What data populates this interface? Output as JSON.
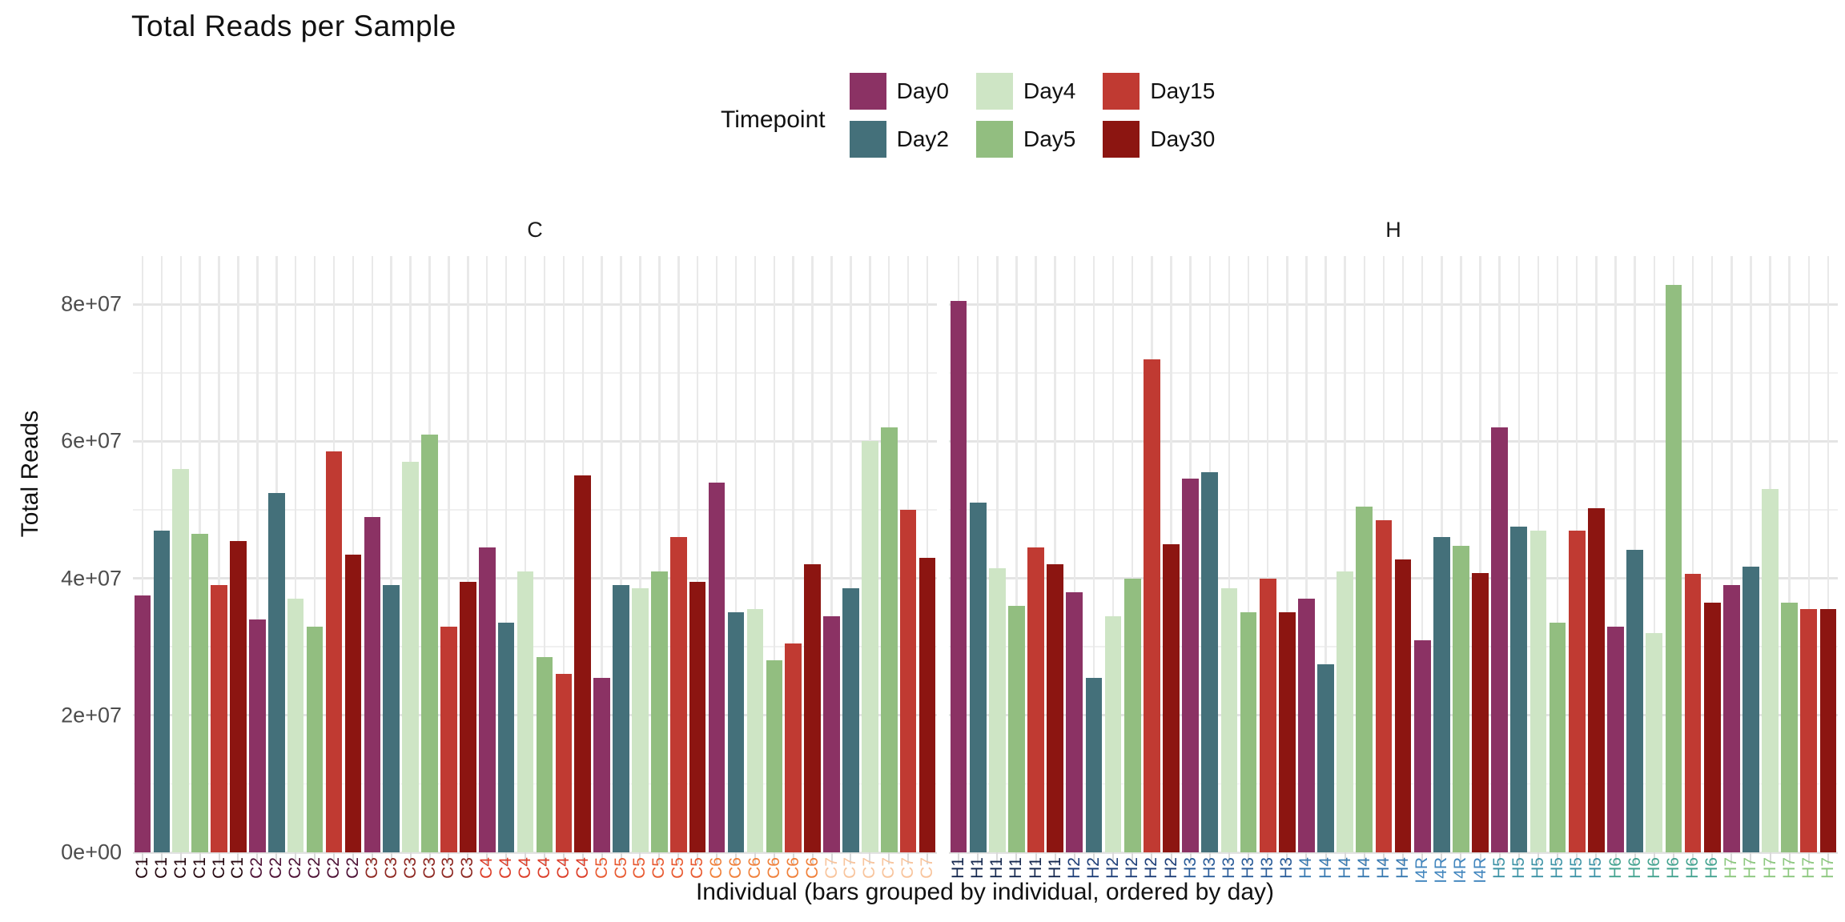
{
  "title": "Total Reads per Sample",
  "legend": {
    "title": "Timepoint",
    "items": [
      {
        "label": "Day0",
        "color": "#8B3264"
      },
      {
        "label": "Day2",
        "color": "#44707A"
      },
      {
        "label": "Day4",
        "color": "#CEE5C5"
      },
      {
        "label": "Day5",
        "color": "#92BE80"
      },
      {
        "label": "Day15",
        "color": "#C03A32"
      },
      {
        "label": "Day30",
        "color": "#8C1511"
      }
    ]
  },
  "axes": {
    "y_title": "Total Reads",
    "x_title": "Individual (bars grouped by individual, ordered by day)",
    "y_ticks": [
      {
        "label": "0e+00",
        "value": 0
      },
      {
        "label": "2e+07",
        "value": 20000000
      },
      {
        "label": "4e+07",
        "value": 40000000
      },
      {
        "label": "6e+07",
        "value": 60000000
      },
      {
        "label": "8e+07",
        "value": 80000000
      }
    ]
  },
  "chart_data": {
    "type": "bar",
    "ylabel": "Total Reads",
    "xlabel": "Individual (bars grouped by individual, ordered by day)",
    "ylim": [
      0,
      87000000
    ],
    "grid": true,
    "legend_position": "top",
    "timepoint_order": [
      "Day0",
      "Day2",
      "Day4",
      "Day5",
      "Day15",
      "Day30"
    ],
    "facets": [
      {
        "label": "C",
        "groups": [
          {
            "individual": "C1",
            "label_color": "#250810",
            "bars": [
              {
                "timepoint": "Day0",
                "value": 37500000
              },
              {
                "timepoint": "Day2",
                "value": 47000000
              },
              {
                "timepoint": "Day4",
                "value": 56000000
              },
              {
                "timepoint": "Day5",
                "value": 46500000
              },
              {
                "timepoint": "Day15",
                "value": 39000000
              },
              {
                "timepoint": "Day30",
                "value": 45500000
              }
            ]
          },
          {
            "individual": "C2",
            "label_color": "#4C1034",
            "bars": [
              {
                "timepoint": "Day0",
                "value": 34000000
              },
              {
                "timepoint": "Day2",
                "value": 52500000
              },
              {
                "timepoint": "Day4",
                "value": 37000000
              },
              {
                "timepoint": "Day5",
                "value": 33000000
              },
              {
                "timepoint": "Day15",
                "value": 58500000
              },
              {
                "timepoint": "Day30",
                "value": 43500000
              }
            ]
          },
          {
            "individual": "C3",
            "label_color": "#8E2822",
            "bars": [
              {
                "timepoint": "Day0",
                "value": 49000000
              },
              {
                "timepoint": "Day2",
                "value": 39000000
              },
              {
                "timepoint": "Day4",
                "value": 57000000
              },
              {
                "timepoint": "Day5",
                "value": 61000000
              },
              {
                "timepoint": "Day15",
                "value": 33000000
              },
              {
                "timepoint": "Day30",
                "value": 39500000
              }
            ]
          },
          {
            "individual": "C4",
            "label_color": "#DC3D28",
            "bars": [
              {
                "timepoint": "Day0",
                "value": 44500000
              },
              {
                "timepoint": "Day2",
                "value": 33500000
              },
              {
                "timepoint": "Day4",
                "value": 41000000
              },
              {
                "timepoint": "Day5",
                "value": 28500000
              },
              {
                "timepoint": "Day15",
                "value": 26000000
              },
              {
                "timepoint": "Day30",
                "value": 55000000
              }
            ]
          },
          {
            "individual": "C5",
            "label_color": "#E85A31",
            "bars": [
              {
                "timepoint": "Day0",
                "value": 25500000
              },
              {
                "timepoint": "Day2",
                "value": 39000000
              },
              {
                "timepoint": "Day4",
                "value": 38500000
              },
              {
                "timepoint": "Day5",
                "value": 41000000
              },
              {
                "timepoint": "Day15",
                "value": 46000000
              },
              {
                "timepoint": "Day30",
                "value": 39500000
              }
            ]
          },
          {
            "individual": "C6",
            "label_color": "#F0803A",
            "bars": [
              {
                "timepoint": "Day0",
                "value": 54000000
              },
              {
                "timepoint": "Day2",
                "value": 35000000
              },
              {
                "timepoint": "Day4",
                "value": 35500000
              },
              {
                "timepoint": "Day5",
                "value": 28000000
              },
              {
                "timepoint": "Day15",
                "value": 30500000
              },
              {
                "timepoint": "Day30",
                "value": 42000000
              }
            ]
          },
          {
            "individual": "C7",
            "label_color": "#F8C49C",
            "bars": [
              {
                "timepoint": "Day0",
                "value": 34500000
              },
              {
                "timepoint": "Day2",
                "value": 38500000
              },
              {
                "timepoint": "Day4",
                "value": 60000000
              },
              {
                "timepoint": "Day5",
                "value": 62000000
              },
              {
                "timepoint": "Day15",
                "value": 50000000
              },
              {
                "timepoint": "Day30",
                "value": 43000000
              }
            ]
          }
        ]
      },
      {
        "label": "H",
        "groups": [
          {
            "individual": "H1",
            "label_color": "#14274E",
            "bars": [
              {
                "timepoint": "Day0",
                "value": 80500000
              },
              {
                "timepoint": "Day2",
                "value": 51000000
              },
              {
                "timepoint": "Day4",
                "value": 41500000
              },
              {
                "timepoint": "Day5",
                "value": 36000000
              },
              {
                "timepoint": "Day15",
                "value": 44500000
              },
              {
                "timepoint": "Day30",
                "value": 42000000
              }
            ]
          },
          {
            "individual": "H2",
            "label_color": "#1D3E78",
            "bars": [
              {
                "timepoint": "Day0",
                "value": 38000000
              },
              {
                "timepoint": "Day2",
                "value": 25500000
              },
              {
                "timepoint": "Day4",
                "value": 34500000
              },
              {
                "timepoint": "Day5",
                "value": 40000000
              },
              {
                "timepoint": "Day15",
                "value": 72000000
              },
              {
                "timepoint": "Day30",
                "value": 45000000
              }
            ]
          },
          {
            "individual": "H3",
            "label_color": "#2A5C99",
            "bars": [
              {
                "timepoint": "Day0",
                "value": 54500000
              },
              {
                "timepoint": "Day2",
                "value": 55500000
              },
              {
                "timepoint": "Day4",
                "value": 38500000
              },
              {
                "timepoint": "Day5",
                "value": 35000000
              },
              {
                "timepoint": "Day15",
                "value": 40000000
              },
              {
                "timepoint": "Day30",
                "value": 35000000
              }
            ]
          },
          {
            "individual": "H4",
            "label_color": "#3778B0",
            "bars": [
              {
                "timepoint": "Day0",
                "value": 37000000
              },
              {
                "timepoint": "Day2",
                "value": 27500000
              },
              {
                "timepoint": "Day4",
                "value": 41000000
              },
              {
                "timepoint": "Day5",
                "value": 50500000
              },
              {
                "timepoint": "Day15",
                "value": 48500000
              },
              {
                "timepoint": "Day30",
                "value": 42800000
              }
            ]
          },
          {
            "individual": "I4R",
            "label_color": "#4286BE",
            "bars": [
              {
                "timepoint": "Day0",
                "value": 31000000
              },
              {
                "timepoint": "Day2",
                "value": 46000000
              },
              {
                "timepoint": "Day5",
                "value": 44800000
              },
              {
                "timepoint": "Day30",
                "value": 40800000
              }
            ]
          },
          {
            "individual": "H5",
            "label_color": "#3D93A6",
            "bars": [
              {
                "timepoint": "Day0",
                "value": 62000000
              },
              {
                "timepoint": "Day2",
                "value": 47500000
              },
              {
                "timepoint": "Day4",
                "value": 47000000
              },
              {
                "timepoint": "Day5",
                "value": 33500000
              },
              {
                "timepoint": "Day15",
                "value": 47000000
              },
              {
                "timepoint": "Day30",
                "value": 50200000
              }
            ]
          },
          {
            "individual": "H6",
            "label_color": "#44A390",
            "bars": [
              {
                "timepoint": "Day0",
                "value": 33000000
              },
              {
                "timepoint": "Day2",
                "value": 44200000
              },
              {
                "timepoint": "Day4",
                "value": 32000000
              },
              {
                "timepoint": "Day5",
                "value": 82800000
              },
              {
                "timepoint": "Day15",
                "value": 40700000
              },
              {
                "timepoint": "Day30",
                "value": 36500000
              }
            ]
          },
          {
            "individual": "H7",
            "label_color": "#8CC87E",
            "bars": [
              {
                "timepoint": "Day0",
                "value": 39000000
              },
              {
                "timepoint": "Day2",
                "value": 41700000
              },
              {
                "timepoint": "Day4",
                "value": 53000000
              },
              {
                "timepoint": "Day5",
                "value": 36500000
              },
              {
                "timepoint": "Day15",
                "value": 35500000
              },
              {
                "timepoint": "Day30",
                "value": 35500000
              }
            ]
          }
        ]
      }
    ]
  }
}
